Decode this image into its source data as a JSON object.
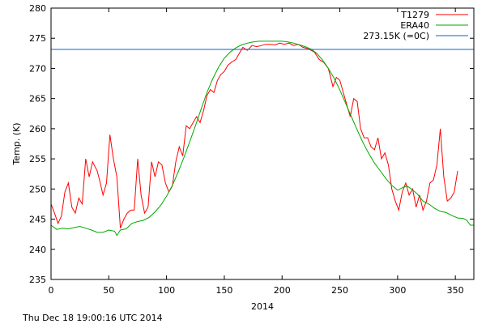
{
  "footer_text": "Thu Dec 18 19:00:16 UTC 2014",
  "chart_data": {
    "type": "line",
    "title": "",
    "xlabel": "2014",
    "ylabel": "Temp. (K)",
    "xlim": [
      0,
      366
    ],
    "ylim": [
      235,
      280
    ],
    "x_ticks": [
      0,
      50,
      100,
      150,
      200,
      250,
      300,
      350
    ],
    "y_ticks": [
      235,
      240,
      245,
      250,
      255,
      260,
      265,
      270,
      275,
      280
    ],
    "legend_position": "top-right",
    "series": [
      {
        "name": "T1279",
        "color": "#ff0000",
        "points": [
          [
            0,
            247.5
          ],
          [
            3,
            246
          ],
          [
            6,
            244.3
          ],
          [
            9,
            245.5
          ],
          [
            12,
            249.5
          ],
          [
            15,
            251
          ],
          [
            18,
            247
          ],
          [
            21,
            246
          ],
          [
            24,
            248.5
          ],
          [
            27,
            247.5
          ],
          [
            30,
            255
          ],
          [
            33,
            252
          ],
          [
            36,
            254.5
          ],
          [
            40,
            253
          ],
          [
            42,
            251.5
          ],
          [
            45,
            249
          ],
          [
            48,
            251
          ],
          [
            51,
            259
          ],
          [
            54,
            255
          ],
          [
            57,
            252
          ],
          [
            60,
            243.5
          ],
          [
            63,
            245
          ],
          [
            66,
            246
          ],
          [
            69,
            246.5
          ],
          [
            72,
            246.5
          ],
          [
            75,
            255
          ],
          [
            78,
            249
          ],
          [
            81,
            246
          ],
          [
            84,
            247
          ],
          [
            87,
            254.5
          ],
          [
            90,
            252
          ],
          [
            93,
            254.5
          ],
          [
            96,
            254
          ],
          [
            99,
            251
          ],
          [
            102,
            249.5
          ],
          [
            105,
            250.5
          ],
          [
            108,
            254.5
          ],
          [
            111,
            257
          ],
          [
            114,
            255.5
          ],
          [
            117,
            260.5
          ],
          [
            120,
            260
          ],
          [
            123,
            261
          ],
          [
            126,
            262
          ],
          [
            129,
            261
          ],
          [
            132,
            263
          ],
          [
            135,
            265.5
          ],
          [
            138,
            266.5
          ],
          [
            141,
            266
          ],
          [
            144,
            268
          ],
          [
            147,
            269
          ],
          [
            150,
            269.5
          ],
          [
            153,
            270.5
          ],
          [
            156,
            271
          ],
          [
            160,
            271.5
          ],
          [
            163,
            272.5
          ],
          [
            166,
            273.5
          ],
          [
            170,
            273
          ],
          [
            174,
            273.8
          ],
          [
            178,
            273.6
          ],
          [
            182,
            273.8
          ],
          [
            186,
            274
          ],
          [
            190,
            274
          ],
          [
            194,
            273.9
          ],
          [
            198,
            274.2
          ],
          [
            202,
            274
          ],
          [
            206,
            274.2
          ],
          [
            210,
            273.8
          ],
          [
            214,
            274
          ],
          [
            218,
            273.5
          ],
          [
            222,
            273.3
          ],
          [
            225,
            273
          ],
          [
            228,
            272.7
          ],
          [
            232,
            271.5
          ],
          [
            236,
            271
          ],
          [
            240,
            270
          ],
          [
            244,
            267
          ],
          [
            247,
            268.5
          ],
          [
            250,
            268
          ],
          [
            253,
            266
          ],
          [
            256,
            264
          ],
          [
            259,
            262
          ],
          [
            262,
            265
          ],
          [
            265,
            264.5
          ],
          [
            268,
            260
          ],
          [
            271,
            258.5
          ],
          [
            274,
            258.5
          ],
          [
            277,
            257
          ],
          [
            280,
            256.5
          ],
          [
            283,
            258.5
          ],
          [
            286,
            255
          ],
          [
            289,
            256
          ],
          [
            292,
            254
          ],
          [
            295,
            250
          ],
          [
            298,
            248
          ],
          [
            301,
            246.5
          ],
          [
            304,
            249.5
          ],
          [
            307,
            251
          ],
          [
            310,
            249
          ],
          [
            313,
            250
          ],
          [
            316,
            247
          ],
          [
            319,
            249
          ],
          [
            322,
            246.5
          ],
          [
            325,
            248
          ],
          [
            328,
            251
          ],
          [
            331,
            251.5
          ],
          [
            334,
            254
          ],
          [
            337,
            260
          ],
          [
            340,
            252
          ],
          [
            343,
            248
          ],
          [
            346,
            248.5
          ],
          [
            349,
            249.5
          ],
          [
            352,
            253
          ]
        ]
      },
      {
        "name": "ERA40",
        "color": "#00aa00",
        "points": [
          [
            0,
            244
          ],
          [
            5,
            243.3
          ],
          [
            10,
            243.5
          ],
          [
            15,
            243.4
          ],
          [
            20,
            243.6
          ],
          [
            25,
            243.8
          ],
          [
            30,
            243.5
          ],
          [
            35,
            243.2
          ],
          [
            40,
            242.8
          ],
          [
            45,
            242.8
          ],
          [
            50,
            243.2
          ],
          [
            55,
            243
          ],
          [
            57,
            242.3
          ],
          [
            60,
            243.2
          ],
          [
            65,
            243.4
          ],
          [
            70,
            244.3
          ],
          [
            75,
            244.6
          ],
          [
            80,
            244.8
          ],
          [
            85,
            245.3
          ],
          [
            90,
            246.2
          ],
          [
            95,
            247.3
          ],
          [
            100,
            248.8
          ],
          [
            105,
            250.6
          ],
          [
            110,
            252.8
          ],
          [
            115,
            255.2
          ],
          [
            120,
            257.8
          ],
          [
            125,
            260.5
          ],
          [
            130,
            263.3
          ],
          [
            135,
            266
          ],
          [
            140,
            268.3
          ],
          [
            145,
            270.2
          ],
          [
            150,
            271.7
          ],
          [
            155,
            272.7
          ],
          [
            160,
            273.4
          ],
          [
            165,
            273.9
          ],
          [
            170,
            274.2
          ],
          [
            175,
            274.4
          ],
          [
            180,
            274.5
          ],
          [
            185,
            274.5
          ],
          [
            190,
            274.5
          ],
          [
            195,
            274.5
          ],
          [
            200,
            274.5
          ],
          [
            205,
            274.4
          ],
          [
            210,
            274.2
          ],
          [
            215,
            273.9
          ],
          [
            220,
            273.6
          ],
          [
            225,
            273.2
          ],
          [
            230,
            272.5
          ],
          [
            235,
            271.4
          ],
          [
            240,
            270
          ],
          [
            245,
            268.4
          ],
          [
            250,
            266.4
          ],
          [
            255,
            264.2
          ],
          [
            260,
            262
          ],
          [
            265,
            259.8
          ],
          [
            270,
            257.7
          ],
          [
            275,
            255.9
          ],
          [
            280,
            254.3
          ],
          [
            285,
            253
          ],
          [
            290,
            251.7
          ],
          [
            295,
            250.6
          ],
          [
            300,
            249.8
          ],
          [
            305,
            250.3
          ],
          [
            308,
            250.5
          ],
          [
            312,
            250
          ],
          [
            317,
            249.2
          ],
          [
            322,
            248
          ],
          [
            327,
            247.5
          ],
          [
            332,
            246.8
          ],
          [
            337,
            246.3
          ],
          [
            342,
            246.1
          ],
          [
            347,
            245.6
          ],
          [
            352,
            245.2
          ],
          [
            357,
            245.1
          ],
          [
            360,
            244.8
          ],
          [
            363,
            244
          ],
          [
            366,
            244
          ]
        ]
      },
      {
        "name": "273.15K (=0C)",
        "color": "#0066cc",
        "points": [
          [
            0,
            273.15
          ],
          [
            366,
            273.15
          ]
        ]
      }
    ]
  }
}
